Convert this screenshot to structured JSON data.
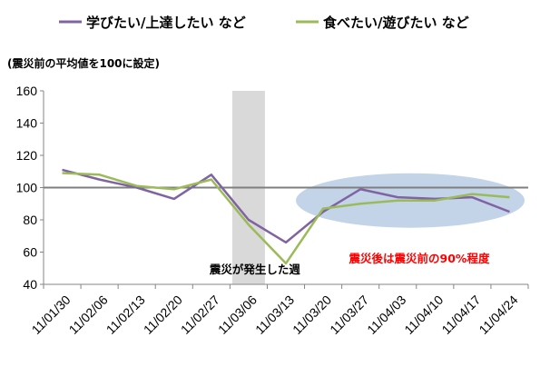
{
  "chart_data": {
    "type": "line",
    "note": "(震災前の平均値を100に設定)",
    "categories": [
      "11/01/30",
      "11/02/06",
      "11/02/13",
      "11/02/20",
      "11/02/27",
      "11/03/06",
      "11/03/13",
      "11/03/20",
      "11/03/27",
      "11/04/03",
      "11/04/10",
      "11/04/17",
      "11/04/24"
    ],
    "series": [
      {
        "name": "学びたい/上達したい など",
        "color": "#8064a2",
        "values": [
          111,
          105,
          100,
          93,
          108,
          80,
          66,
          85,
          99,
          94,
          93,
          94,
          85
        ]
      },
      {
        "name": "食べたい/遊びたい など",
        "color": "#9bbb59",
        "values": [
          109,
          108,
          101,
          99,
          105,
          77,
          53,
          87,
          90,
          92,
          92,
          96,
          94
        ]
      }
    ],
    "ylim": [
      40,
      160
    ],
    "yticks": [
      40,
      60,
      80,
      100,
      120,
      140,
      160
    ],
    "reference_line": 100,
    "shaded_category": "11/03/06",
    "shade_label": "震災が発生した週",
    "highlight_label": "震災後は震災前の90%程度",
    "highlight_color": "#ff0000",
    "legend_position": "top",
    "grid": false
  }
}
